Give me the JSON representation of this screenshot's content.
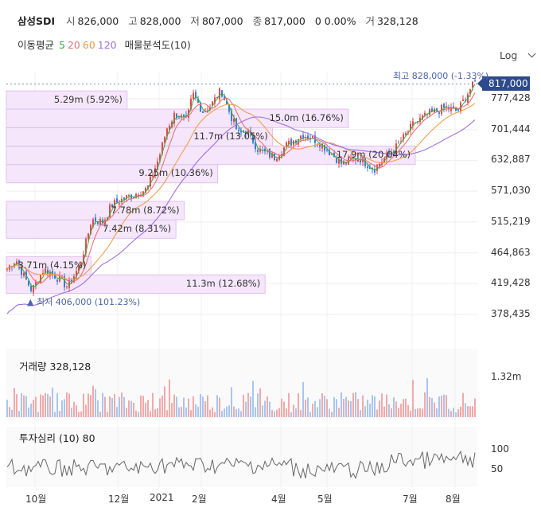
{
  "header": {
    "name": "삼성SDI",
    "open_label": "시",
    "open": "826,000",
    "high_label": "고",
    "high": "828,000",
    "low_label": "저",
    "low": "807,000",
    "close_label": "종",
    "close": "817,000",
    "change": "0 0.00%",
    "volume_label": "거",
    "volume": "328,128"
  },
  "ma_legend": {
    "label": "이동평균",
    "periods": [
      {
        "text": "5",
        "color": "#3cab3c"
      },
      {
        "text": "20",
        "color": "#e8737a"
      },
      {
        "text": "60",
        "color": "#f0a050"
      },
      {
        "text": "120",
        "color": "#a070e0"
      }
    ],
    "profile_label": "매물분석도(10)"
  },
  "scale_label": "Log",
  "colors": {
    "up": "#e34a4a",
    "down": "#3a7bd5",
    "ma5": "#3cab3c",
    "ma20": "#e8737a",
    "ma60": "#f0a050",
    "ma120": "#a070e0",
    "profile_fill": "#f5e6fb",
    "profile_border": "#d9b8ea"
  },
  "chart_data": {
    "type": "candlestick",
    "scale": "log",
    "y_ticks": [
      "777,428",
      "701,444",
      "632,887",
      "571,030",
      "515,219",
      "464,863",
      "419,428",
      "378,435"
    ],
    "y_tick_values": [
      777428,
      701444,
      632887,
      571030,
      515219,
      464863,
      419428,
      378435
    ],
    "current_price": "817,000",
    "x_labels": [
      "10월",
      "12월",
      "2021",
      "2월",
      "4월",
      "5월",
      "7월",
      "8월"
    ],
    "high_marker": "최고 828,000 (-1.33%)",
    "low_marker": "최저 406,000 (101.23%)",
    "volume_profile": [
      {
        "label": "11.3m (12.68%)",
        "pct": 12.68,
        "low": 406000,
        "high": 432000
      },
      {
        "label": "3.71m (4.15%)",
        "pct": 4.15,
        "low": 432000,
        "high": 459000
      },
      {
        "label": "7.42m (8.31%)",
        "pct": 8.31,
        "low": 488000,
        "high": 519000
      },
      {
        "label": "7.78m (8.72%)",
        "pct": 8.72,
        "low": 519000,
        "high": 552000
      },
      {
        "label": "9.25m (10.36%)",
        "pct": 10.36,
        "low": 587000,
        "high": 624000
      },
      {
        "label": "17.9m (20.04%)",
        "pct": 20.04,
        "low": 624000,
        "high": 664000
      },
      {
        "label": "11.7m (13.05%)",
        "pct": 13.05,
        "low": 664000,
        "high": 706000
      },
      {
        "label": "15.0m (16.76%)",
        "pct": 16.76,
        "low": 706000,
        "high": 751000
      },
      {
        "label": "5.29m (5.92%)",
        "pct": 5.92,
        "low": 751000,
        "high": 798000
      }
    ]
  },
  "volume_panel": {
    "label": "거래량",
    "value": "328,128",
    "axis": "1.32m"
  },
  "sentiment_panel": {
    "label": "투자심리 (10)",
    "value": "80",
    "ticks": [
      "100",
      "50"
    ]
  }
}
